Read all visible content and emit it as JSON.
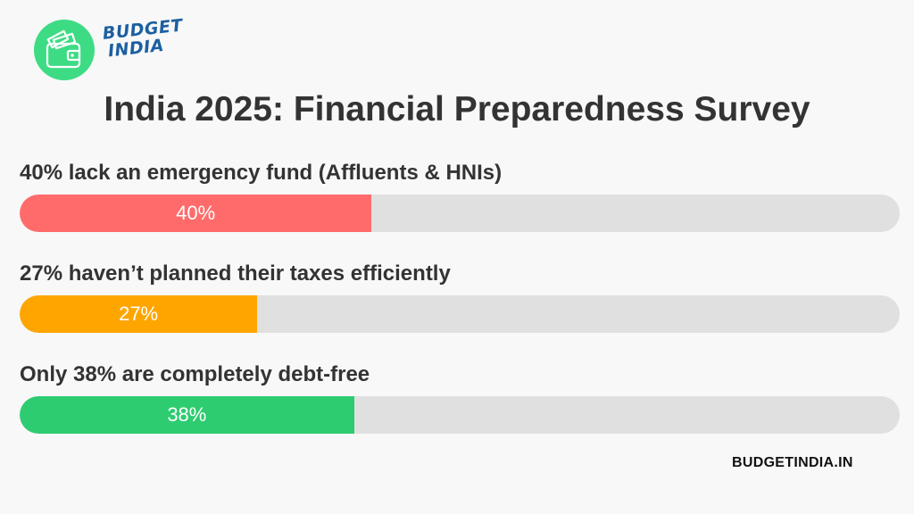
{
  "logo": {
    "line1": "BUDGET",
    "line2": "INDIA",
    "icon": "wallet-icon",
    "circle_color": "#3ddc84",
    "text_color": "#1c5fa0"
  },
  "title": "India 2025: Financial Preparedness Survey",
  "metrics": [
    {
      "label": "40% lack an emergency fund (Affluents & HNIs)",
      "value": 40,
      "display": "40%",
      "color": "#ff6b6b"
    },
    {
      "label": "27% haven’t planned their taxes efficiently",
      "value": 27,
      "display": "27%",
      "color": "#ffa500"
    },
    {
      "label": "Only 38% are completely debt-free",
      "value": 38,
      "display": "38%",
      "color": "#2ecc71"
    }
  ],
  "track_color": "#e0e0e0",
  "footer": "BUDGETINDIA.IN",
  "chart_data": {
    "type": "bar",
    "orientation": "horizontal",
    "title": "India 2025: Financial Preparedness Survey",
    "categories": [
      "40% lack an emergency fund (Affluents & HNIs)",
      "27% haven’t planned their taxes efficiently",
      "Only 38% are completely debt-free"
    ],
    "values": [
      40,
      27,
      38
    ],
    "data_labels": [
      "40%",
      "27%",
      "38%"
    ],
    "xlim": [
      0,
      100
    ],
    "grid": false
  }
}
